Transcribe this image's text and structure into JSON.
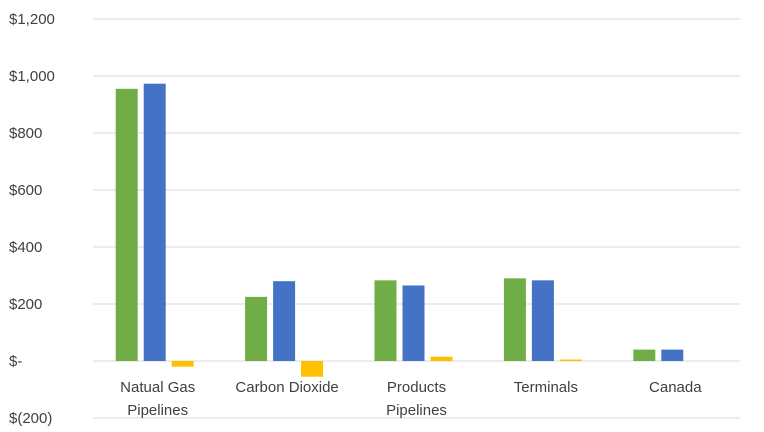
{
  "chart_data": {
    "type": "bar",
    "title": "",
    "xlabel": "",
    "ylabel": "",
    "ylim": [
      -200,
      1200
    ],
    "y_ticks": [
      {
        "value": 1200,
        "label": "$1,200"
      },
      {
        "value": 1000,
        "label": "$1,000"
      },
      {
        "value": 800,
        "label": "$800"
      },
      {
        "value": 600,
        "label": "$600"
      },
      {
        "value": 400,
        "label": "$400"
      },
      {
        "value": 200,
        "label": "$200"
      },
      {
        "value": 0,
        "label": "$-"
      },
      {
        "value": -200,
        "label": "$(200)"
      }
    ],
    "categories": [
      [
        "Natual Gas",
        "Pipelines"
      ],
      [
        "Carbon Dioxide"
      ],
      [
        "Products",
        "Pipelines"
      ],
      [
        "Terminals"
      ],
      [
        "Canada"
      ]
    ],
    "series": [
      {
        "color": "#70ad47",
        "values": [
          955,
          225,
          283,
          290,
          40
        ]
      },
      {
        "color": "#4472c4",
        "values": [
          973,
          280,
          265,
          283,
          40
        ]
      },
      {
        "color": "#ffc000",
        "values": [
          -20,
          -55,
          15,
          5,
          0
        ]
      }
    ],
    "grid": true,
    "legend": "none"
  }
}
